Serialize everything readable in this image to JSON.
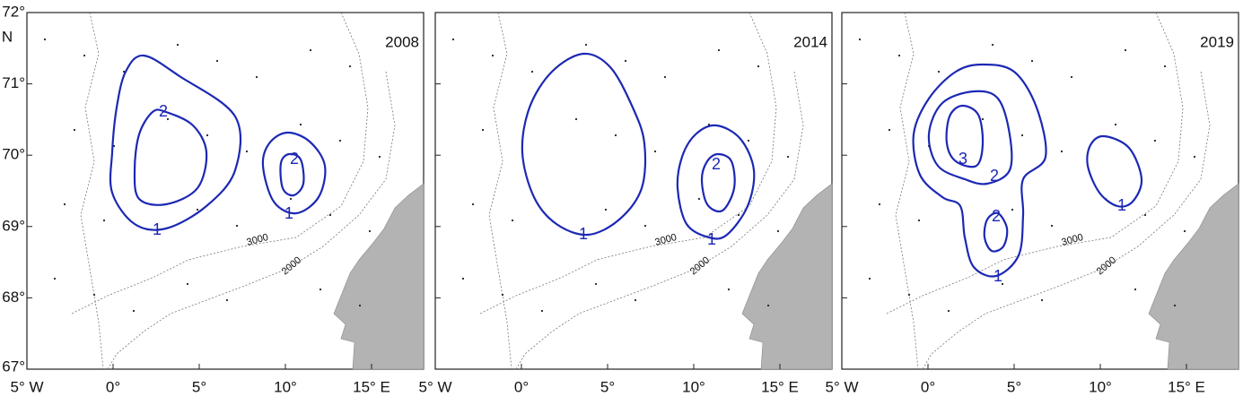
{
  "y_axis_labels": [
    "72°",
    "71°",
    "70°",
    "69°",
    "68°",
    "67°"
  ],
  "y_axis_unit": "N",
  "x_axis_labels": [
    "5° W",
    "0°",
    "5°",
    "10°",
    "15° E"
  ],
  "depth_labels": [
    "3000",
    "2000"
  ],
  "panels": [
    {
      "year": "2008",
      "contour_labels": [
        "2",
        "1",
        "2",
        "1"
      ]
    },
    {
      "year": "2014",
      "contour_labels": [
        "1",
        "2",
        "1"
      ]
    },
    {
      "year": "2019",
      "contour_labels": [
        "3",
        "2",
        "2",
        "1",
        "1"
      ]
    }
  ]
}
